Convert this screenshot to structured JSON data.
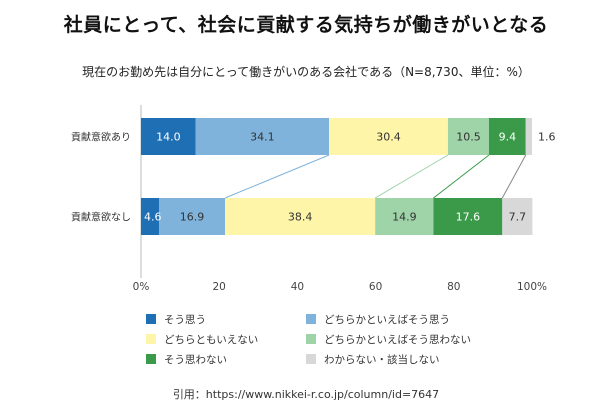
{
  "title": "社員にとって、社会に貢献する気持ちが働きがいとなる",
  "subtitle": "現在のお勤め先は自分にとって働きがいのある会社である（N=8,730、単位：%）",
  "source": "引用：https://www.nikkei-r.co.jp/column/id=7647",
  "legend": [
    {
      "label": "そう思う",
      "color": "#1f6fb5"
    },
    {
      "label": "どちらかといえばそう思う",
      "color": "#7fb3dc"
    },
    {
      "label": "どちらともいえない",
      "color": "#fff5a8"
    },
    {
      "label": "どちらかといえばそう思わない",
      "color": "#9fd3a8"
    },
    {
      "label": "そう思わない",
      "color": "#3a9a4a"
    },
    {
      "label": "わからない・該当しない",
      "color": "#d8d8d8"
    }
  ],
  "chart_data": {
    "type": "bar",
    "orientation": "horizontal",
    "stacked": true,
    "categories": [
      "貢献意欲あり",
      "貢献意欲なし"
    ],
    "series": [
      {
        "name": "そう思う",
        "values": [
          14.0,
          4.6
        ],
        "labels": [
          "14.0",
          "4.6"
        ]
      },
      {
        "name": "どちらかといえばそう思う",
        "values": [
          34.1,
          16.9
        ],
        "labels": [
          "34.1",
          "16.9"
        ]
      },
      {
        "name": "どちらともいえない",
        "values": [
          30.4,
          38.4
        ],
        "labels": [
          "30.4",
          "38.4"
        ]
      },
      {
        "name": "どちらかといえばそう思わない",
        "values": [
          10.5,
          14.9
        ],
        "labels": [
          "10.5",
          "14.9"
        ]
      },
      {
        "name": "そう思わない",
        "values": [
          9.4,
          17.6
        ],
        "labels": [
          "9.4",
          "17.6"
        ]
      },
      {
        "name": "わからない・該当しない",
        "values": [
          1.6,
          7.7
        ],
        "labels": [
          "1.6",
          "7.7"
        ]
      }
    ],
    "xlim": [
      0,
      100
    ],
    "xticks": [
      0,
      20,
      40,
      60,
      80,
      100
    ],
    "xtick_labels": [
      "0%",
      "20",
      "40",
      "60",
      "80",
      "100%"
    ],
    "connector_lines": true,
    "grid": false,
    "legend_position": "bottom"
  }
}
